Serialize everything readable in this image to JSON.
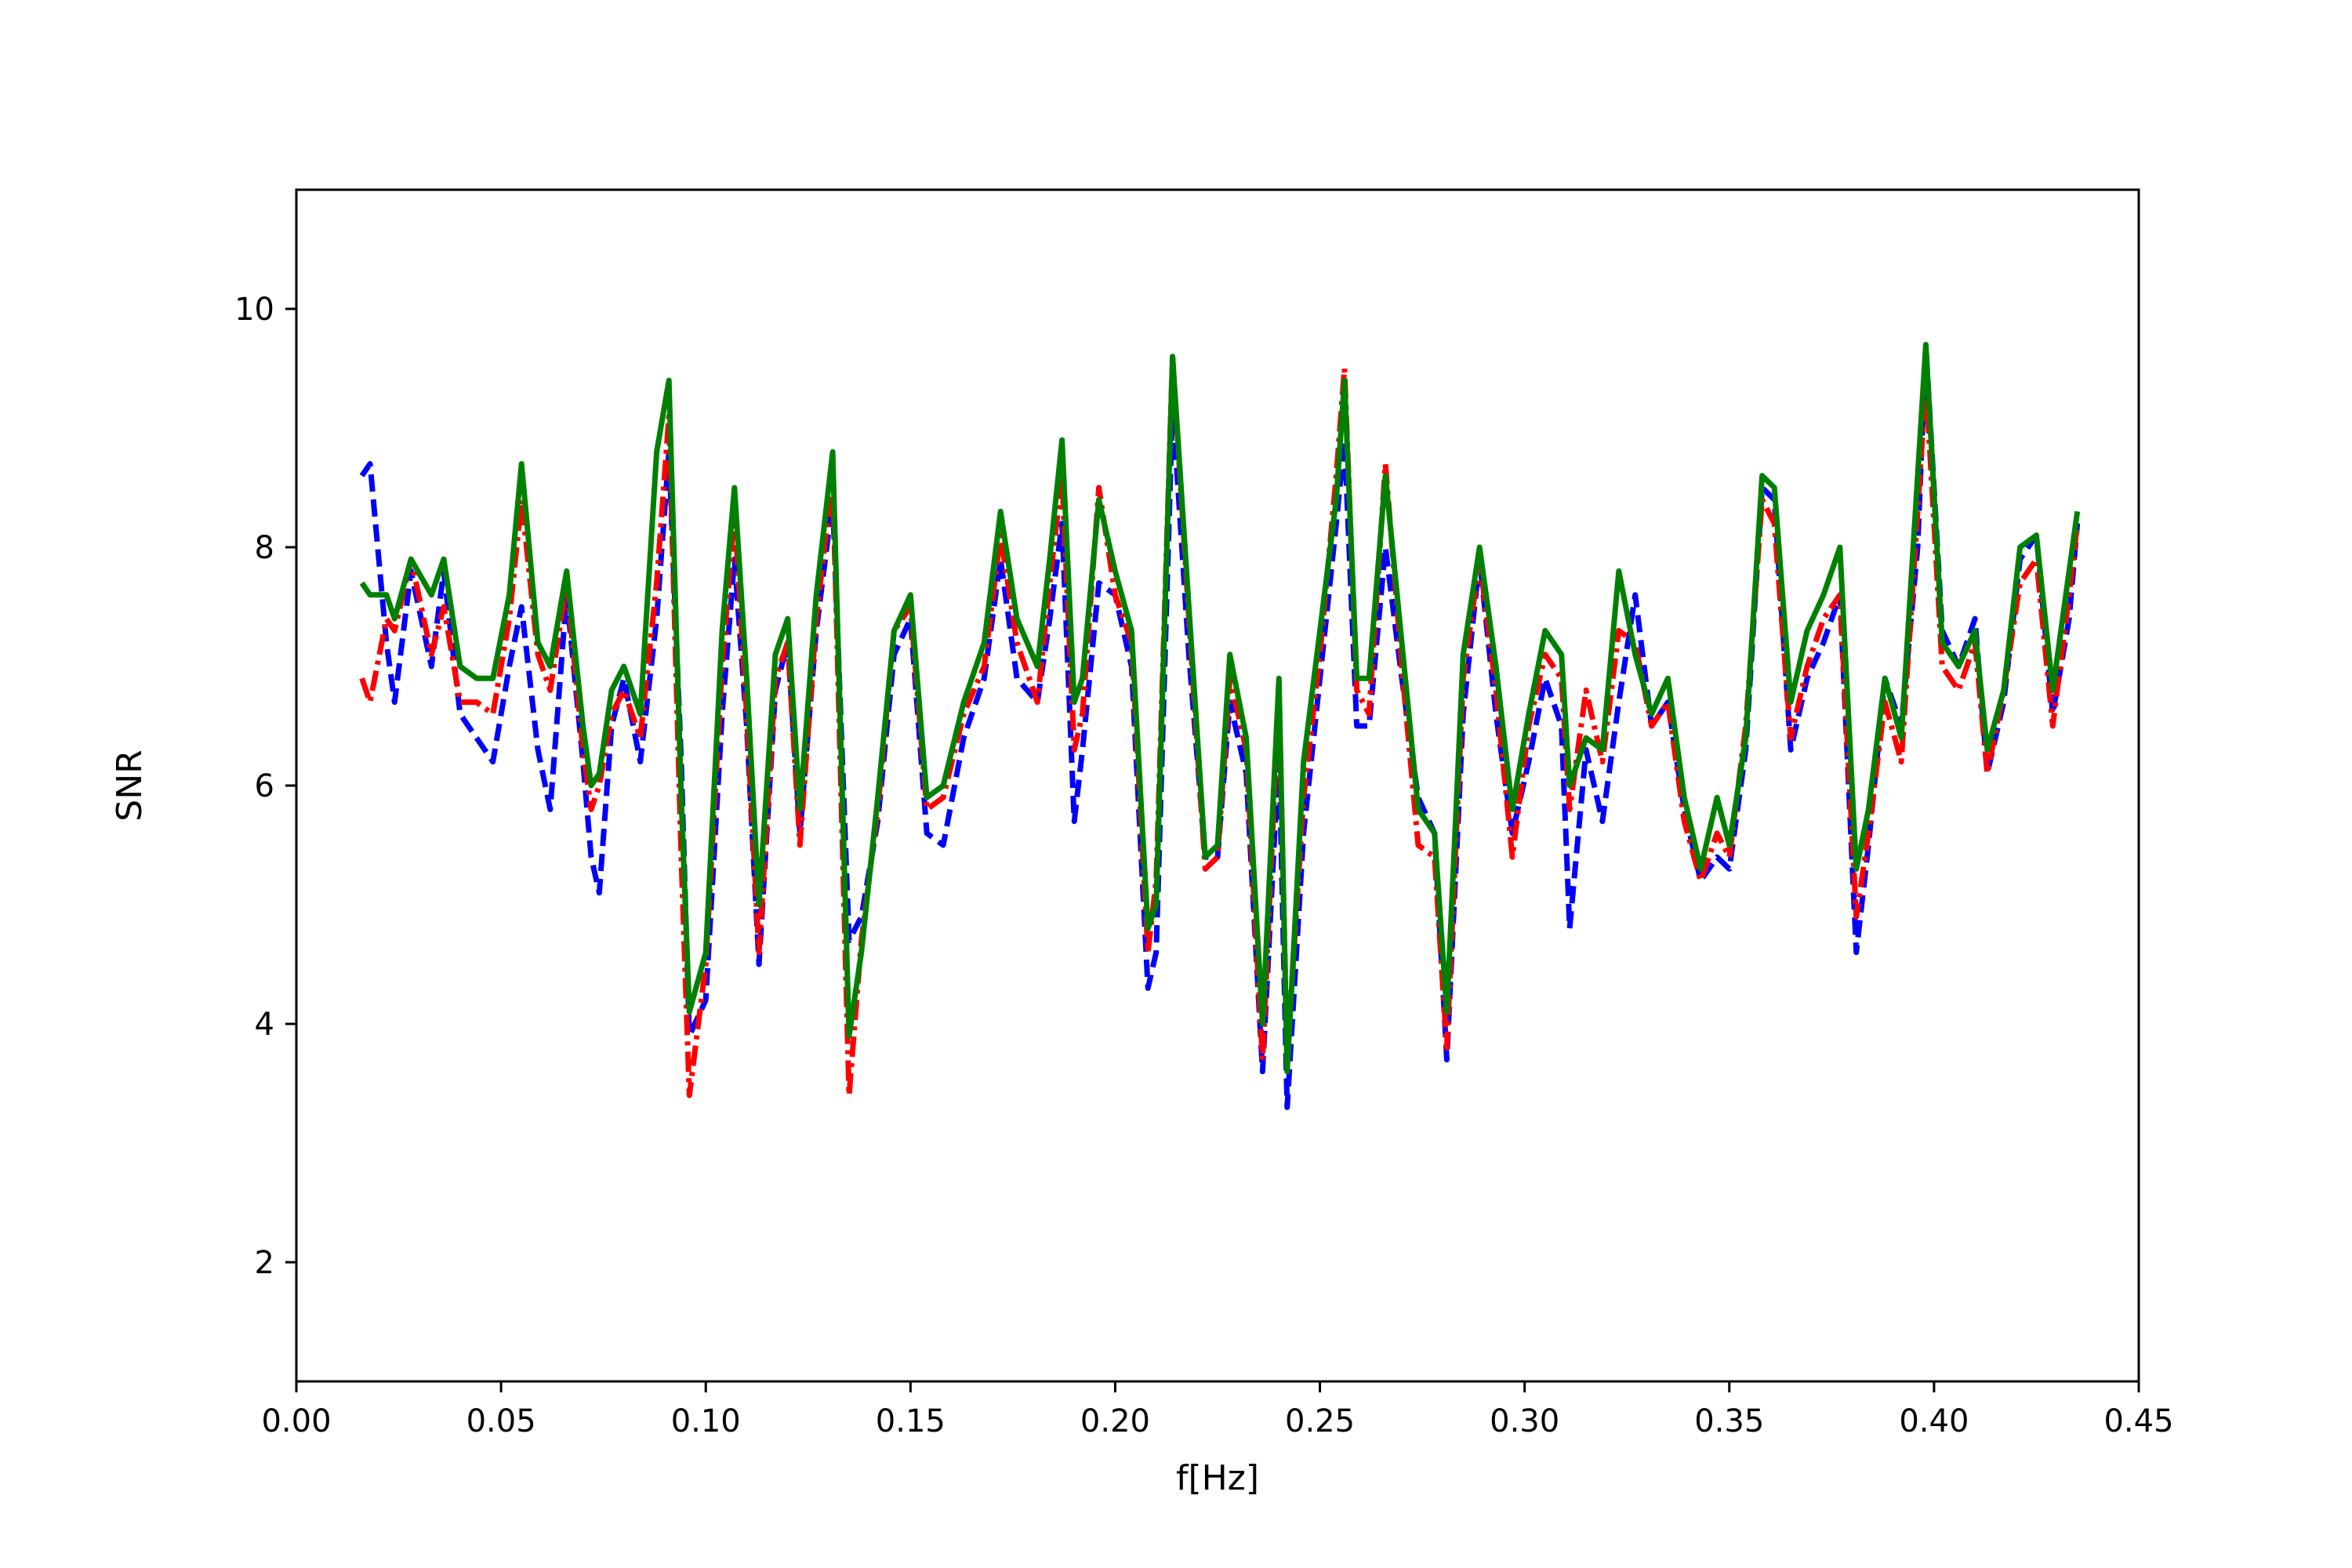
{
  "chart_data": {
    "type": "line",
    "xlabel": "f[Hz]",
    "ylabel": "SNR",
    "xlim": [
      0.0,
      0.45
    ],
    "ylim": [
      1.0,
      11.0
    ],
    "xticks": [
      "0.00",
      "0.05",
      "0.10",
      "0.15",
      "0.20",
      "0.25",
      "0.30",
      "0.35",
      "0.40",
      "0.45"
    ],
    "yticks": [
      "2",
      "4",
      "6",
      "8",
      "10"
    ],
    "grid": false,
    "series": [
      {
        "color": "#0000ff",
        "dash": "dashed",
        "x": [
          0.016,
          0.018,
          0.022,
          0.024,
          0.028,
          0.033,
          0.036,
          0.04,
          0.044,
          0.048,
          0.052,
          0.055,
          0.059,
          0.062,
          0.066,
          0.07,
          0.072,
          0.074,
          0.077,
          0.08,
          0.084,
          0.088,
          0.091,
          0.094,
          0.096,
          0.1,
          0.104,
          0.107,
          0.11,
          0.113,
          0.117,
          0.12,
          0.123,
          0.127,
          0.131,
          0.135,
          0.138,
          0.142,
          0.146,
          0.15,
          0.154,
          0.158,
          0.163,
          0.168,
          0.172,
          0.176,
          0.181,
          0.184,
          0.187,
          0.19,
          0.192,
          0.196,
          0.2,
          0.204,
          0.208,
          0.21,
          0.214,
          0.218,
          0.222,
          0.225,
          0.228,
          0.232,
          0.236,
          0.24,
          0.242,
          0.246,
          0.25,
          0.254,
          0.256,
          0.259,
          0.262,
          0.266,
          0.27,
          0.274,
          0.278,
          0.281,
          0.285,
          0.289,
          0.293,
          0.297,
          0.301,
          0.305,
          0.309,
          0.311,
          0.315,
          0.319,
          0.323,
          0.327,
          0.331,
          0.335,
          0.339,
          0.343,
          0.347,
          0.35,
          0.354,
          0.358,
          0.361,
          0.365,
          0.369,
          0.373,
          0.377,
          0.381,
          0.384,
          0.388,
          0.392,
          0.396,
          0.398,
          0.402,
          0.406,
          0.41,
          0.413,
          0.417,
          0.421,
          0.425,
          0.429,
          0.433,
          0.435
        ],
        "y": [
          8.6,
          8.7,
          7.2,
          6.7,
          7.8,
          7.0,
          7.8,
          6.6,
          6.4,
          6.2,
          7.0,
          7.5,
          6.3,
          5.8,
          7.6,
          6.2,
          5.4,
          5.1,
          6.5,
          6.9,
          6.2,
          7.4,
          8.8,
          6.2,
          3.9,
          4.2,
          6.6,
          7.9,
          6.5,
          4.5,
          6.8,
          7.2,
          5.6,
          7.3,
          8.4,
          4.7,
          4.9,
          5.7,
          7.1,
          7.4,
          5.6,
          5.5,
          6.4,
          6.9,
          7.9,
          6.9,
          6.7,
          7.4,
          8.2,
          5.7,
          6.3,
          7.7,
          7.6,
          7.0,
          4.3,
          4.6,
          9.2,
          7.1,
          5.4,
          5.4,
          6.7,
          6.1,
          3.6,
          6.3,
          3.3,
          5.6,
          6.9,
          8.2,
          8.9,
          6.5,
          6.5,
          8.0,
          6.9,
          5.9,
          5.6,
          3.7,
          6.6,
          7.9,
          6.6,
          5.6,
          6.2,
          6.9,
          6.5,
          4.8,
          6.3,
          5.7,
          6.7,
          7.6,
          6.5,
          6.7,
          5.8,
          5.2,
          5.4,
          5.3,
          6.3,
          8.5,
          8.4,
          6.3,
          6.9,
          7.2,
          7.6,
          4.6,
          5.5,
          6.9,
          6.5,
          8.0,
          9.7,
          7.3,
          7.0,
          7.4,
          6.1,
          6.7,
          7.9,
          8.1,
          6.6,
          7.4,
          8.2
        ]
      },
      {
        "color": "#ff0000",
        "dash": "dashdot",
        "x": [
          0.016,
          0.018,
          0.022,
          0.024,
          0.028,
          0.033,
          0.036,
          0.04,
          0.044,
          0.048,
          0.052,
          0.055,
          0.059,
          0.062,
          0.066,
          0.07,
          0.072,
          0.074,
          0.077,
          0.08,
          0.084,
          0.088,
          0.091,
          0.094,
          0.096,
          0.1,
          0.104,
          0.107,
          0.11,
          0.113,
          0.117,
          0.12,
          0.123,
          0.127,
          0.131,
          0.135,
          0.138,
          0.142,
          0.146,
          0.15,
          0.154,
          0.158,
          0.163,
          0.168,
          0.172,
          0.176,
          0.181,
          0.184,
          0.187,
          0.19,
          0.192,
          0.196,
          0.2,
          0.204,
          0.208,
          0.21,
          0.214,
          0.218,
          0.222,
          0.225,
          0.228,
          0.232,
          0.236,
          0.24,
          0.242,
          0.246,
          0.25,
          0.254,
          0.256,
          0.259,
          0.262,
          0.266,
          0.27,
          0.274,
          0.278,
          0.281,
          0.285,
          0.289,
          0.293,
          0.297,
          0.301,
          0.305,
          0.309,
          0.311,
          0.315,
          0.319,
          0.323,
          0.327,
          0.331,
          0.335,
          0.339,
          0.343,
          0.347,
          0.35,
          0.354,
          0.358,
          0.361,
          0.365,
          0.369,
          0.373,
          0.377,
          0.381,
          0.384,
          0.388,
          0.392,
          0.396,
          0.398,
          0.402,
          0.406,
          0.41,
          0.413,
          0.417,
          0.421,
          0.425,
          0.429,
          0.433,
          0.435
        ],
        "y": [
          6.9,
          6.7,
          7.4,
          7.3,
          7.9,
          7.1,
          7.5,
          6.7,
          6.7,
          6.6,
          7.4,
          8.4,
          7.1,
          6.8,
          7.7,
          6.3,
          5.8,
          6.0,
          6.6,
          6.8,
          6.4,
          7.7,
          9.1,
          5.4,
          3.4,
          4.5,
          7.0,
          8.3,
          6.6,
          4.6,
          6.9,
          7.2,
          5.5,
          7.4,
          8.6,
          3.4,
          4.7,
          5.8,
          7.3,
          7.5,
          5.8,
          5.9,
          6.6,
          7.0,
          8.1,
          7.2,
          6.7,
          7.7,
          8.6,
          6.3,
          6.6,
          8.5,
          7.6,
          7.2,
          4.6,
          5.2,
          9.6,
          7.4,
          5.3,
          5.4,
          6.9,
          6.3,
          3.7,
          6.8,
          3.7,
          5.9,
          7.1,
          8.6,
          9.5,
          6.8,
          6.6,
          8.7,
          7.0,
          5.5,
          5.4,
          3.8,
          6.9,
          7.9,
          6.8,
          5.4,
          6.5,
          7.1,
          6.9,
          5.8,
          6.8,
          6.2,
          7.3,
          7.2,
          6.5,
          6.7,
          5.7,
          5.2,
          5.6,
          5.4,
          6.5,
          8.4,
          8.2,
          6.4,
          7.0,
          7.4,
          7.6,
          4.9,
          5.6,
          6.7,
          6.2,
          8.3,
          9.4,
          7.0,
          6.8,
          7.2,
          6.1,
          6.8,
          7.7,
          7.9,
          6.5,
          7.6,
          8.2
        ]
      },
      {
        "color": "#008000",
        "dash": "solid",
        "x": [
          0.016,
          0.018,
          0.022,
          0.024,
          0.028,
          0.033,
          0.036,
          0.04,
          0.044,
          0.048,
          0.052,
          0.055,
          0.059,
          0.062,
          0.066,
          0.07,
          0.072,
          0.074,
          0.077,
          0.08,
          0.084,
          0.088,
          0.091,
          0.094,
          0.096,
          0.1,
          0.104,
          0.107,
          0.11,
          0.113,
          0.117,
          0.12,
          0.123,
          0.127,
          0.131,
          0.135,
          0.138,
          0.142,
          0.146,
          0.15,
          0.154,
          0.158,
          0.163,
          0.168,
          0.172,
          0.176,
          0.181,
          0.184,
          0.187,
          0.19,
          0.192,
          0.196,
          0.2,
          0.204,
          0.208,
          0.21,
          0.214,
          0.218,
          0.222,
          0.225,
          0.228,
          0.232,
          0.236,
          0.24,
          0.242,
          0.246,
          0.25,
          0.254,
          0.256,
          0.259,
          0.262,
          0.266,
          0.27,
          0.274,
          0.278,
          0.281,
          0.285,
          0.289,
          0.293,
          0.297,
          0.301,
          0.305,
          0.309,
          0.311,
          0.315,
          0.319,
          0.323,
          0.327,
          0.331,
          0.335,
          0.339,
          0.343,
          0.347,
          0.35,
          0.354,
          0.358,
          0.361,
          0.365,
          0.369,
          0.373,
          0.377,
          0.381,
          0.384,
          0.388,
          0.392,
          0.396,
          0.398,
          0.402,
          0.406,
          0.41,
          0.413,
          0.417,
          0.421,
          0.425,
          0.429,
          0.433,
          0.435
        ],
        "y": [
          7.7,
          7.6,
          7.6,
          7.4,
          7.9,
          7.6,
          7.9,
          7.0,
          6.9,
          6.9,
          7.6,
          8.7,
          7.2,
          7.0,
          7.8,
          6.5,
          6.0,
          6.1,
          6.8,
          7.0,
          6.6,
          8.8,
          9.4,
          5.9,
          4.1,
          4.6,
          7.3,
          8.5,
          6.9,
          5.0,
          7.1,
          7.4,
          5.8,
          7.6,
          8.8,
          3.9,
          4.6,
          5.9,
          7.3,
          7.6,
          5.9,
          6.0,
          6.7,
          7.2,
          8.3,
          7.4,
          7.0,
          7.9,
          8.9,
          6.7,
          6.9,
          8.4,
          7.8,
          7.3,
          4.8,
          5.0,
          9.6,
          7.5,
          5.4,
          5.5,
          7.1,
          6.4,
          4.0,
          6.9,
          3.6,
          6.2,
          7.3,
          8.4,
          9.4,
          6.9,
          6.9,
          8.6,
          7.2,
          5.8,
          5.6,
          4.1,
          7.1,
          8.0,
          7.0,
          5.8,
          6.6,
          7.3,
          7.1,
          6.0,
          6.4,
          6.3,
          7.8,
          7.1,
          6.6,
          6.9,
          5.9,
          5.3,
          5.9,
          5.5,
          6.4,
          8.6,
          8.5,
          6.7,
          7.3,
          7.6,
          8.0,
          5.3,
          5.8,
          6.9,
          6.4,
          8.6,
          9.7,
          7.2,
          7.0,
          7.3,
          6.3,
          6.8,
          8.0,
          8.1,
          6.8,
          7.8,
          8.3
        ]
      }
    ]
  }
}
